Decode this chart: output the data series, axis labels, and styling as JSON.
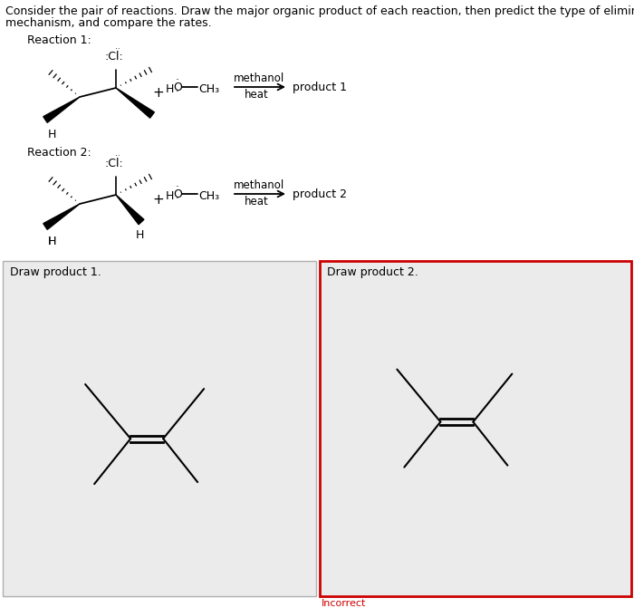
{
  "header_line1": "Consider the pair of reactions. Draw the major organic product of each reaction, then predict the type of elimination",
  "header_line2": "mechanism, and compare the rates.",
  "reaction1_label": "Reaction 1:",
  "reaction2_label": "Reaction 2:",
  "product1_label": "Draw product 1.",
  "product2_label": "Draw product 2.",
  "incorrect_label": "Incorrect",
  "methanol_text": "methanol",
  "heat_text": "heat",
  "product1_text": "product 1",
  "product2_text": "product 2",
  "bg_color": "#ebebeb",
  "white": "#ffffff",
  "box1_border": "#b0b0b0",
  "box2_border": "#cc0000",
  "incorrect_color": "#cc0000",
  "text_color": "#000000",
  "font_size_header": 9.0,
  "font_size_label": 9.0,
  "font_size_box_label": 9.0,
  "font_size_incorrect": 8.0,
  "font_size_chem": 9.0,
  "font_size_dots": 5.5
}
